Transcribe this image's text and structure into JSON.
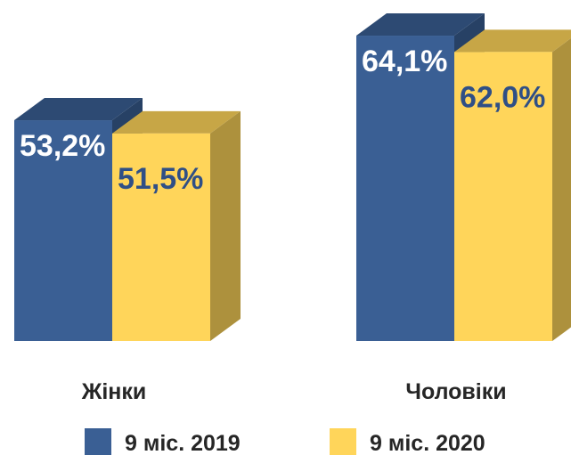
{
  "chart_data": {
    "type": "bar3d",
    "categories": [
      "Жінки",
      "Чоловіки"
    ],
    "series": [
      {
        "name": "9 міс. 2019",
        "color": "#3a5f94",
        "values": [
          53.2,
          64.1
        ],
        "value_labels": [
          "53,2%",
          "64,1%"
        ]
      },
      {
        "name": "9 міс. 2020",
        "color": "#ffd55a",
        "values": [
          51.5,
          62.0
        ],
        "value_labels": [
          "51,5%",
          "62,0%"
        ]
      }
    ],
    "legend": "bottom"
  }
}
